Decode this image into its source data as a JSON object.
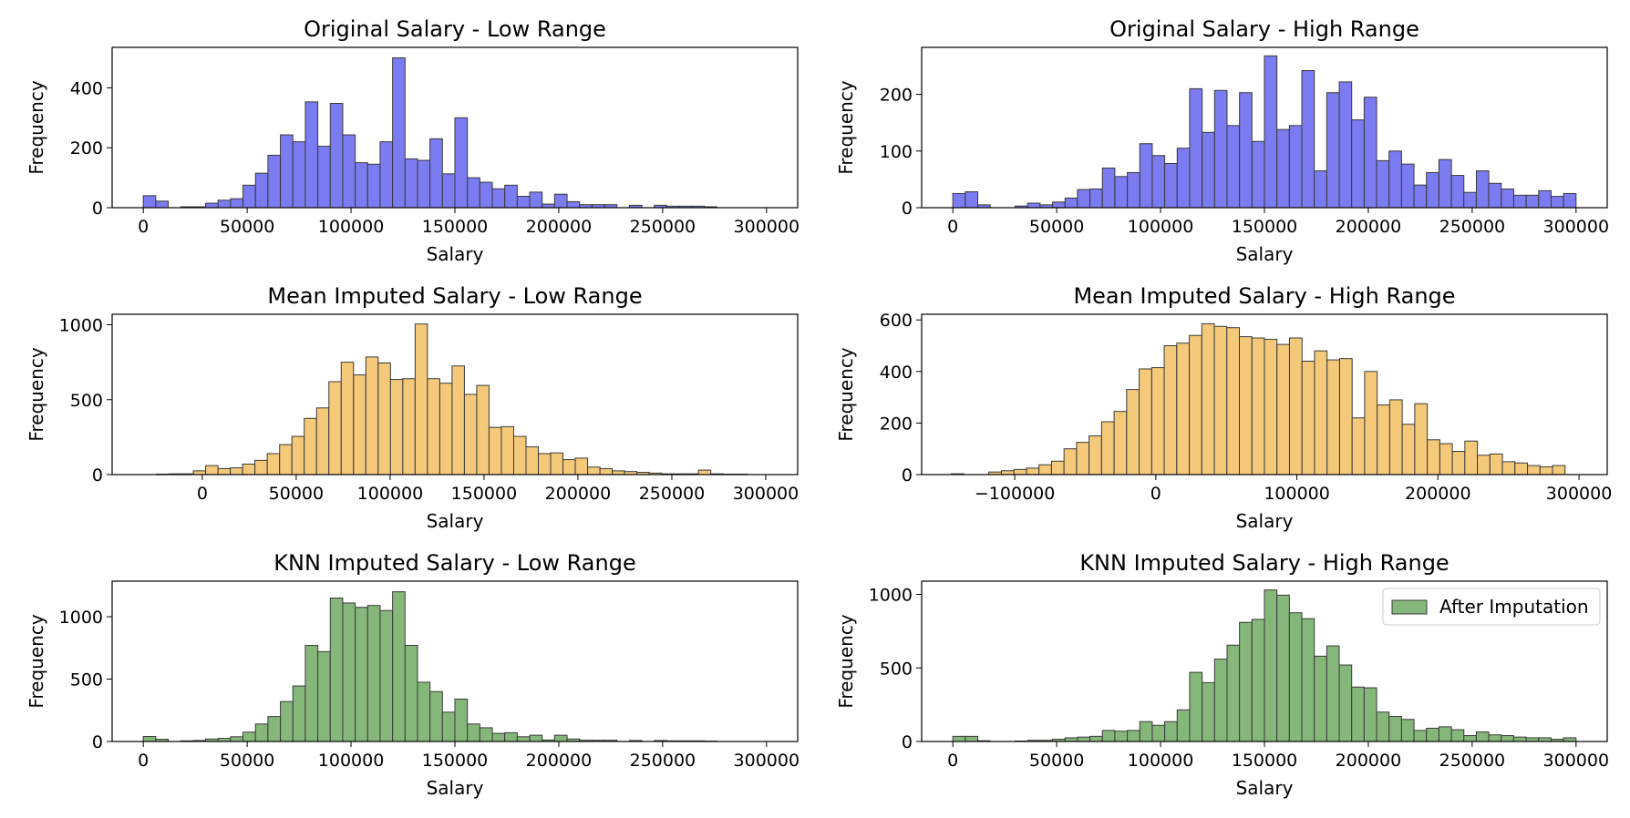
{
  "chart_data": [
    {
      "type": "bar",
      "title": "Original Salary - Low Range",
      "xlabel": "Salary",
      "ylabel": "Frequency",
      "color": "#7b7bf2",
      "xlim": [
        -15000,
        315000
      ],
      "ylim": [
        0,
        535
      ],
      "xticks": [
        0,
        50000,
        100000,
        150000,
        200000,
        250000,
        300000
      ],
      "xtick_labels": [
        "0",
        "50000",
        "100000",
        "150000",
        "200000",
        "250000",
        "300000"
      ],
      "yticks": [
        0,
        200,
        400
      ],
      "ytick_labels": [
        "0",
        "200",
        "400"
      ],
      "bin_start": 0,
      "bin_width": 6000,
      "values": [
        40,
        22,
        0,
        3,
        3,
        15,
        25,
        30,
        75,
        115,
        175,
        243,
        220,
        353,
        205,
        348,
        243,
        150,
        145,
        220,
        500,
        163,
        158,
        230,
        113,
        300,
        100,
        85,
        63,
        75,
        38,
        52,
        12,
        45,
        20,
        10,
        10,
        10,
        0,
        8,
        0,
        8,
        5,
        5,
        5,
        3,
        0,
        0,
        0,
        0
      ]
    },
    {
      "type": "bar",
      "title": "Original Salary - High Range",
      "xlabel": "Salary",
      "ylabel": "Frequency",
      "color": "#7b7bf2",
      "xlim": [
        -15000,
        315000
      ],
      "ylim": [
        0,
        283
      ],
      "xticks": [
        0,
        50000,
        100000,
        150000,
        200000,
        250000,
        300000
      ],
      "xtick_labels": [
        "0",
        "50000",
        "100000",
        "150000",
        "200000",
        "250000",
        "300000"
      ],
      "yticks": [
        0,
        100,
        200
      ],
      "ytick_labels": [
        "0",
        "100",
        "200"
      ],
      "bin_start": 0,
      "bin_width": 6000,
      "values": [
        25,
        28,
        5,
        0,
        0,
        3,
        8,
        5,
        10,
        17,
        32,
        33,
        70,
        55,
        62,
        113,
        92,
        78,
        105,
        210,
        133,
        207,
        145,
        203,
        117,
        268,
        138,
        145,
        242,
        65,
        203,
        222,
        155,
        195,
        83,
        100,
        77,
        40,
        62,
        85,
        57,
        27,
        65,
        43,
        33,
        22,
        22,
        30,
        20,
        25
      ]
    },
    {
      "type": "bar",
      "title": "Mean Imputed Salary - Low Range",
      "xlabel": "Salary",
      "ylabel": "Frequency",
      "color": "#f5c97a",
      "xlim": [
        -48000,
        317000
      ],
      "ylim": [
        0,
        1070
      ],
      "xticks": [
        0,
        50000,
        100000,
        150000,
        200000,
        250000,
        300000
      ],
      "xtick_labels": [
        "0",
        "50000",
        "100000",
        "150000",
        "200000",
        "250000",
        "300000"
      ],
      "yticks": [
        0,
        500,
        1000
      ],
      "ytick_labels": [
        "0",
        "500",
        "1000"
      ],
      "bin_start": -31000,
      "bin_width": 6560,
      "values": [
        0,
        3,
        5,
        5,
        25,
        60,
        40,
        45,
        70,
        95,
        140,
        200,
        255,
        375,
        445,
        620,
        750,
        665,
        785,
        745,
        635,
        640,
        1005,
        640,
        610,
        725,
        535,
        595,
        315,
        320,
        255,
        185,
        140,
        145,
        100,
        110,
        50,
        40,
        25,
        20,
        15,
        10,
        5,
        5,
        5,
        30,
        5,
        3,
        3,
        0
      ]
    },
    {
      "type": "bar",
      "title": "Mean Imputed Salary - High Range",
      "xlabel": "Salary",
      "ylabel": "Frequency",
      "color": "#f5c97a",
      "xlim": [
        -166000,
        320000
      ],
      "ylim": [
        0,
        622
      ],
      "xticks": [
        -100000,
        0,
        100000,
        200000,
        300000
      ],
      "xtick_labels": [
        "−100000",
        "0",
        "100000",
        "200000",
        "300000"
      ],
      "yticks": [
        0,
        200,
        400,
        600
      ],
      "ytick_labels": [
        "0",
        "200",
        "400",
        "600"
      ],
      "bin_start": -145000,
      "bin_width": 8880,
      "values": [
        3,
        0,
        0,
        10,
        15,
        20,
        25,
        38,
        52,
        100,
        125,
        150,
        205,
        245,
        330,
        410,
        415,
        500,
        510,
        540,
        585,
        575,
        570,
        535,
        530,
        525,
        505,
        530,
        440,
        480,
        445,
        450,
        220,
        400,
        270,
        290,
        195,
        275,
        135,
        120,
        90,
        130,
        75,
        80,
        50,
        45,
        35,
        30,
        35,
        0
      ]
    },
    {
      "type": "bar",
      "title": "KNN Imputed Salary - Low Range",
      "xlabel": "Salary",
      "ylabel": "Frequency",
      "color": "#86b77a",
      "xlim": [
        -15000,
        315000
      ],
      "ylim": [
        0,
        1285
      ],
      "xticks": [
        0,
        50000,
        100000,
        150000,
        200000,
        250000,
        300000
      ],
      "xtick_labels": [
        "0",
        "50000",
        "100000",
        "150000",
        "200000",
        "250000",
        "300000"
      ],
      "yticks": [
        0,
        500,
        1000
      ],
      "ytick_labels": [
        "0",
        "500",
        "1000"
      ],
      "bin_start": 0,
      "bin_width": 6000,
      "values": [
        40,
        18,
        0,
        5,
        8,
        20,
        25,
        38,
        75,
        140,
        200,
        320,
        445,
        770,
        720,
        1150,
        1110,
        1075,
        1090,
        1050,
        1200,
        770,
        475,
        400,
        235,
        340,
        140,
        110,
        65,
        70,
        38,
        50,
        12,
        50,
        20,
        10,
        10,
        10,
        0,
        8,
        0,
        8,
        5,
        5,
        5,
        3,
        0,
        0,
        0,
        0
      ]
    },
    {
      "type": "bar",
      "title": "KNN Imputed Salary - High Range",
      "xlabel": "Salary",
      "ylabel": "Frequency",
      "color": "#86b77a",
      "xlim": [
        -15000,
        315000
      ],
      "ylim": [
        0,
        1090
      ],
      "xticks": [
        0,
        50000,
        100000,
        150000,
        200000,
        250000,
        300000
      ],
      "xtick_labels": [
        "0",
        "50000",
        "100000",
        "150000",
        "200000",
        "250000",
        "300000"
      ],
      "yticks": [
        0,
        500,
        1000
      ],
      "ytick_labels": [
        "0",
        "500",
        "1000"
      ],
      "bin_start": 0,
      "bin_width": 6000,
      "values": [
        35,
        35,
        5,
        0,
        0,
        3,
        8,
        8,
        15,
        25,
        30,
        35,
        75,
        70,
        75,
        135,
        110,
        135,
        215,
        470,
        400,
        560,
        655,
        810,
        830,
        1030,
        995,
        875,
        835,
        580,
        650,
        520,
        370,
        365,
        200,
        170,
        150,
        75,
        90,
        100,
        80,
        40,
        65,
        45,
        40,
        30,
        25,
        25,
        15,
        25
      ],
      "legend": {
        "label": "After Imputation",
        "position": "upper right"
      }
    }
  ]
}
